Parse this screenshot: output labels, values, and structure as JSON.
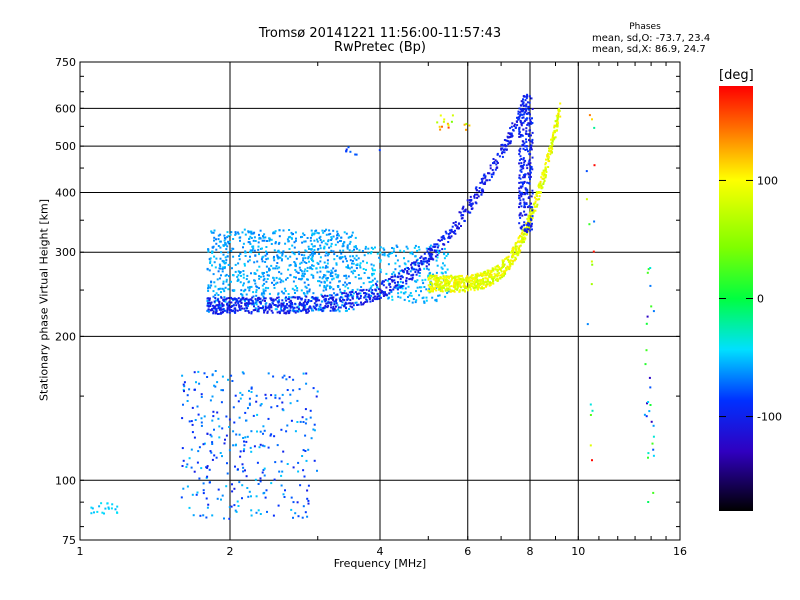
{
  "chart_data": {
    "type": "scatter",
    "title": "Tromsø 20141221 11:56:00-11:57:43",
    "subtitle": "RwPretec (Bp)",
    "xlabel": "Frequency [MHz]",
    "ylabel": "Stationary phase Virtual Height [km]",
    "x_scale": "log",
    "y_scale": "log",
    "xlim": [
      1,
      16
    ],
    "ylim": [
      75,
      750
    ],
    "x_ticks": [
      1,
      2,
      4,
      6,
      8,
      10,
      16
    ],
    "y_ticks": [
      75,
      100,
      200,
      300,
      400,
      500,
      600,
      750
    ],
    "grid": true,
    "colorbar": {
      "label": "[deg]",
      "range": [
        -180,
        180
      ],
      "ticks": [
        100,
        0,
        -100
      ]
    },
    "annotation": {
      "header": "Phases",
      "line_o": "mean, sd,O: -73.7, 23.4",
      "line_x": "mean, sd,X:  86.9, 24.7"
    },
    "clusters": [
      {
        "freq": [
          1.8,
          3.6
        ],
        "height": [
          225,
          335
        ],
        "phase": [
          -75,
          -50
        ],
        "n": 900
      },
      {
        "freq": [
          3.6,
          5.5
        ],
        "height": [
          235,
          310
        ],
        "phase": [
          -70,
          -45
        ],
        "n": 260
      },
      {
        "freq": [
          1.8,
          7.9
        ],
        "height_start": 232,
        "height_end": 620,
        "shape": "curve",
        "phase": [
          -120,
          -95
        ],
        "n": 850
      },
      {
        "freq": [
          5.0,
          9.2
        ],
        "height_start": 258,
        "height_end": 600,
        "shape": "curve",
        "phase": [
          70,
          110
        ],
        "n": 800
      },
      {
        "freq": [
          7.6,
          8.1
        ],
        "height": [
          330,
          640
        ],
        "phase": [
          -120,
          -90
        ],
        "n": 260
      },
      {
        "freq": [
          1.6,
          3.0
        ],
        "height": [
          83,
          170
        ],
        "phase": [
          -110,
          -50
        ],
        "n": 330
      },
      {
        "freq": [
          1.05,
          1.2
        ],
        "height": [
          85,
          90
        ],
        "phase": [
          -60,
          -40
        ],
        "n": 20
      },
      {
        "freq": [
          13.6,
          14.2
        ],
        "height": [
          90,
          300
        ],
        "phase": [
          -130,
          30
        ],
        "n": 28
      },
      {
        "freq": [
          10.4,
          10.8
        ],
        "height": [
          110,
          610
        ],
        "phase": [
          -120,
          180
        ],
        "n": 18
      },
      {
        "freq": [
          3.4,
          4.0
        ],
        "height": [
          480,
          500
        ],
        "phase": [
          -100,
          -80
        ],
        "n": 8
      },
      {
        "freq": [
          5.1,
          6.1
        ],
        "height": [
          540,
          580
        ],
        "phase": [
          20,
          160
        ],
        "n": 16
      }
    ]
  }
}
